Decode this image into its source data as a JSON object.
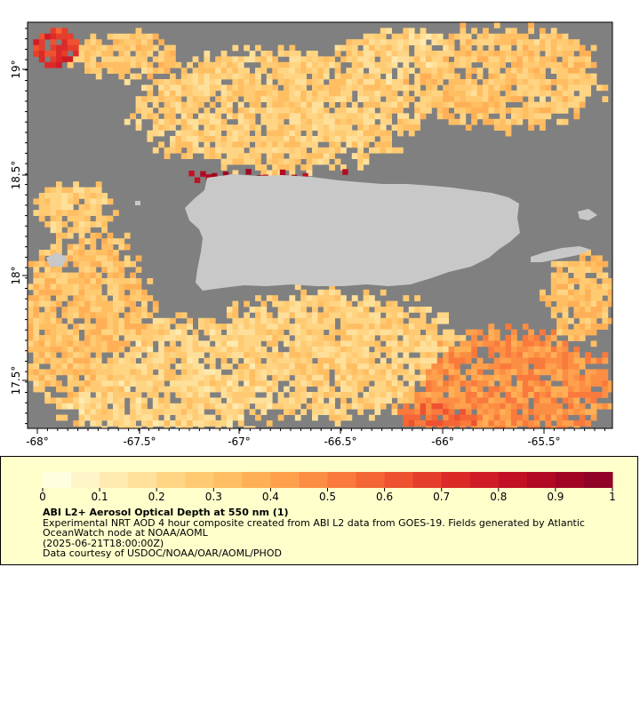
{
  "map": {
    "lon_ticks": [
      "-68°",
      "-67.5°",
      "-67°",
      "-66.5°",
      "-66°",
      "-65.5°"
    ],
    "lat_ticks": [
      "19°",
      "18.5°",
      "18°",
      "17.5°"
    ],
    "colors": {
      "no_data": "#808080",
      "land": "#c8c8c8",
      "frame": "#000000"
    }
  },
  "legend": {
    "ticks": [
      "0",
      "0.1",
      "0.2",
      "0.3",
      "0.4",
      "0.5",
      "0.6",
      "0.7",
      "0.8",
      "0.9",
      "1"
    ],
    "title": "ABI L2+ Aerosol Optical Depth at 550 nm (1)",
    "line1": "Experimental NRT AOD 4 hour composite created from ABI L2 data from GOES-19. Fields generated by Atlantic OceanWatch node at NOAA/AOML",
    "line2": "(2025-06-21T18:00:00Z)",
    "line3": "Data courtesy of USDOC/NOAA/OAR/AOML/PHOD",
    "colors": [
      "#ffffe0",
      "#fff5c8",
      "#ffebb0",
      "#ffe09a",
      "#ffd584",
      "#ffca72",
      "#ffbe62",
      "#ffb056",
      "#fea04c",
      "#fc8e44",
      "#f97a3c",
      "#f46636",
      "#ee5230",
      "#e63e2c",
      "#dc2a28",
      "#d01c26",
      "#c21024",
      "#b20a24",
      "#a20524",
      "#900326"
    ]
  }
}
